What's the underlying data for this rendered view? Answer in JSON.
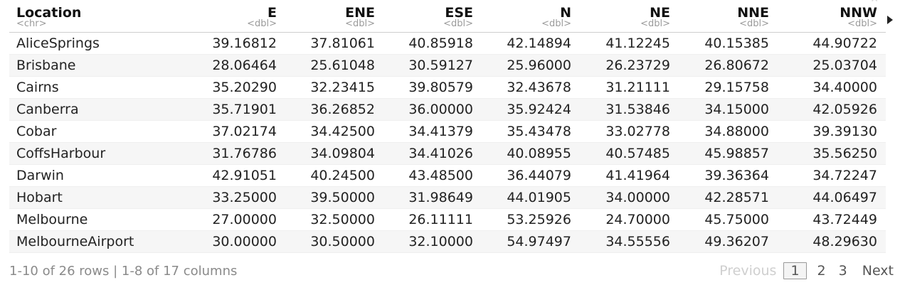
{
  "table": {
    "columns": [
      {
        "name": "Location",
        "type": "<chr>"
      },
      {
        "name": "E",
        "type": "<dbl>"
      },
      {
        "name": "ENE",
        "type": "<dbl>"
      },
      {
        "name": "ESE",
        "type": "<dbl>"
      },
      {
        "name": "N",
        "type": "<dbl>"
      },
      {
        "name": "NE",
        "type": "<dbl>"
      },
      {
        "name": "NNE",
        "type": "<dbl>"
      },
      {
        "name": "NNW",
        "type": "<dbl>"
      }
    ],
    "rows": [
      [
        "AliceSprings",
        "39.16812",
        "37.81061",
        "40.85918",
        "42.14894",
        "41.12245",
        "40.15385",
        "44.90722"
      ],
      [
        "Brisbane",
        "28.06464",
        "25.61048",
        "30.59127",
        "25.96000",
        "26.23729",
        "26.80672",
        "25.03704"
      ],
      [
        "Cairns",
        "35.20290",
        "32.23415",
        "39.80579",
        "32.43678",
        "31.21111",
        "29.15758",
        "34.40000"
      ],
      [
        "Canberra",
        "35.71901",
        "36.26852",
        "36.00000",
        "35.92424",
        "31.53846",
        "34.15000",
        "42.05926"
      ],
      [
        "Cobar",
        "37.02174",
        "34.42500",
        "34.41379",
        "35.43478",
        "33.02778",
        "34.88000",
        "39.39130"
      ],
      [
        "CoffsHarbour",
        "31.76786",
        "34.09804",
        "34.41026",
        "40.08955",
        "40.57485",
        "45.98857",
        "35.56250"
      ],
      [
        "Darwin",
        "42.91051",
        "40.24500",
        "43.48500",
        "36.44079",
        "41.41964",
        "39.36364",
        "34.72247"
      ],
      [
        "Hobart",
        "33.25000",
        "39.50000",
        "31.98649",
        "44.01905",
        "34.00000",
        "42.28571",
        "44.06497"
      ],
      [
        "Melbourne",
        "27.00000",
        "32.50000",
        "26.11111",
        "53.25926",
        "24.70000",
        "45.75000",
        "43.72449"
      ],
      [
        "MelbourneAirport",
        "30.00000",
        "30.50000",
        "32.10000",
        "54.97497",
        "34.55556",
        "49.36207",
        "48.29630"
      ]
    ]
  },
  "footer": {
    "info": "1-10 of 26 rows | 1-8 of 17 columns"
  },
  "pager": {
    "previous": "Previous",
    "pages": [
      "1",
      "2",
      "3"
    ],
    "current": "1",
    "next": "Next"
  },
  "icons": {
    "next_columns": "triangle-right-icon"
  }
}
